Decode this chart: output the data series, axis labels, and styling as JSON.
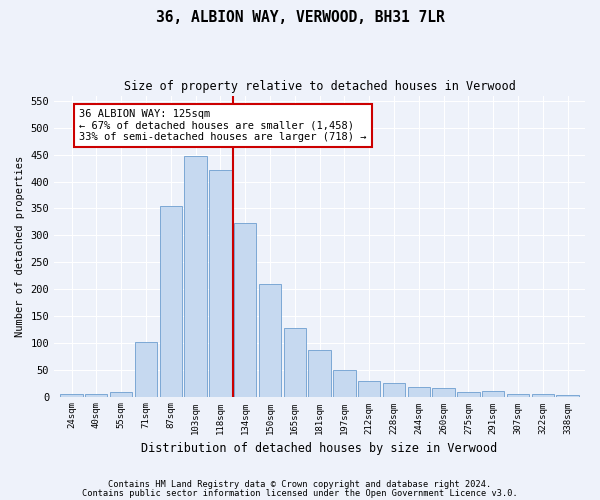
{
  "title1": "36, ALBION WAY, VERWOOD, BH31 7LR",
  "title2": "Size of property relative to detached houses in Verwood",
  "xlabel": "Distribution of detached houses by size in Verwood",
  "ylabel": "Number of detached properties",
  "categories": [
    "24sqm",
    "40sqm",
    "55sqm",
    "71sqm",
    "87sqm",
    "103sqm",
    "118sqm",
    "134sqm",
    "150sqm",
    "165sqm",
    "181sqm",
    "197sqm",
    "212sqm",
    "228sqm",
    "244sqm",
    "260sqm",
    "275sqm",
    "291sqm",
    "307sqm",
    "322sqm",
    "338sqm"
  ],
  "values": [
    4,
    5,
    8,
    102,
    355,
    447,
    422,
    322,
    210,
    128,
    87,
    50,
    29,
    25,
    18,
    15,
    8,
    10,
    4,
    4,
    3
  ],
  "bar_color": "#c6d9f0",
  "bar_edgecolor": "#7ca8d5",
  "vline_color": "#cc0000",
  "annotation_title": "36 ALBION WAY: 125sqm",
  "annotation_line1": "← 67% of detached houses are smaller (1,458)",
  "annotation_line2": "33% of semi-detached houses are larger (718) →",
  "annotation_box_color": "#cc0000",
  "ylim": [
    0,
    560
  ],
  "yticks": [
    0,
    50,
    100,
    150,
    200,
    250,
    300,
    350,
    400,
    450,
    500,
    550
  ],
  "footer1": "Contains HM Land Registry data © Crown copyright and database right 2024.",
  "footer2": "Contains public sector information licensed under the Open Government Licence v3.0.",
  "bg_color": "#eef2fa",
  "plot_bg_color": "#eef2fa"
}
